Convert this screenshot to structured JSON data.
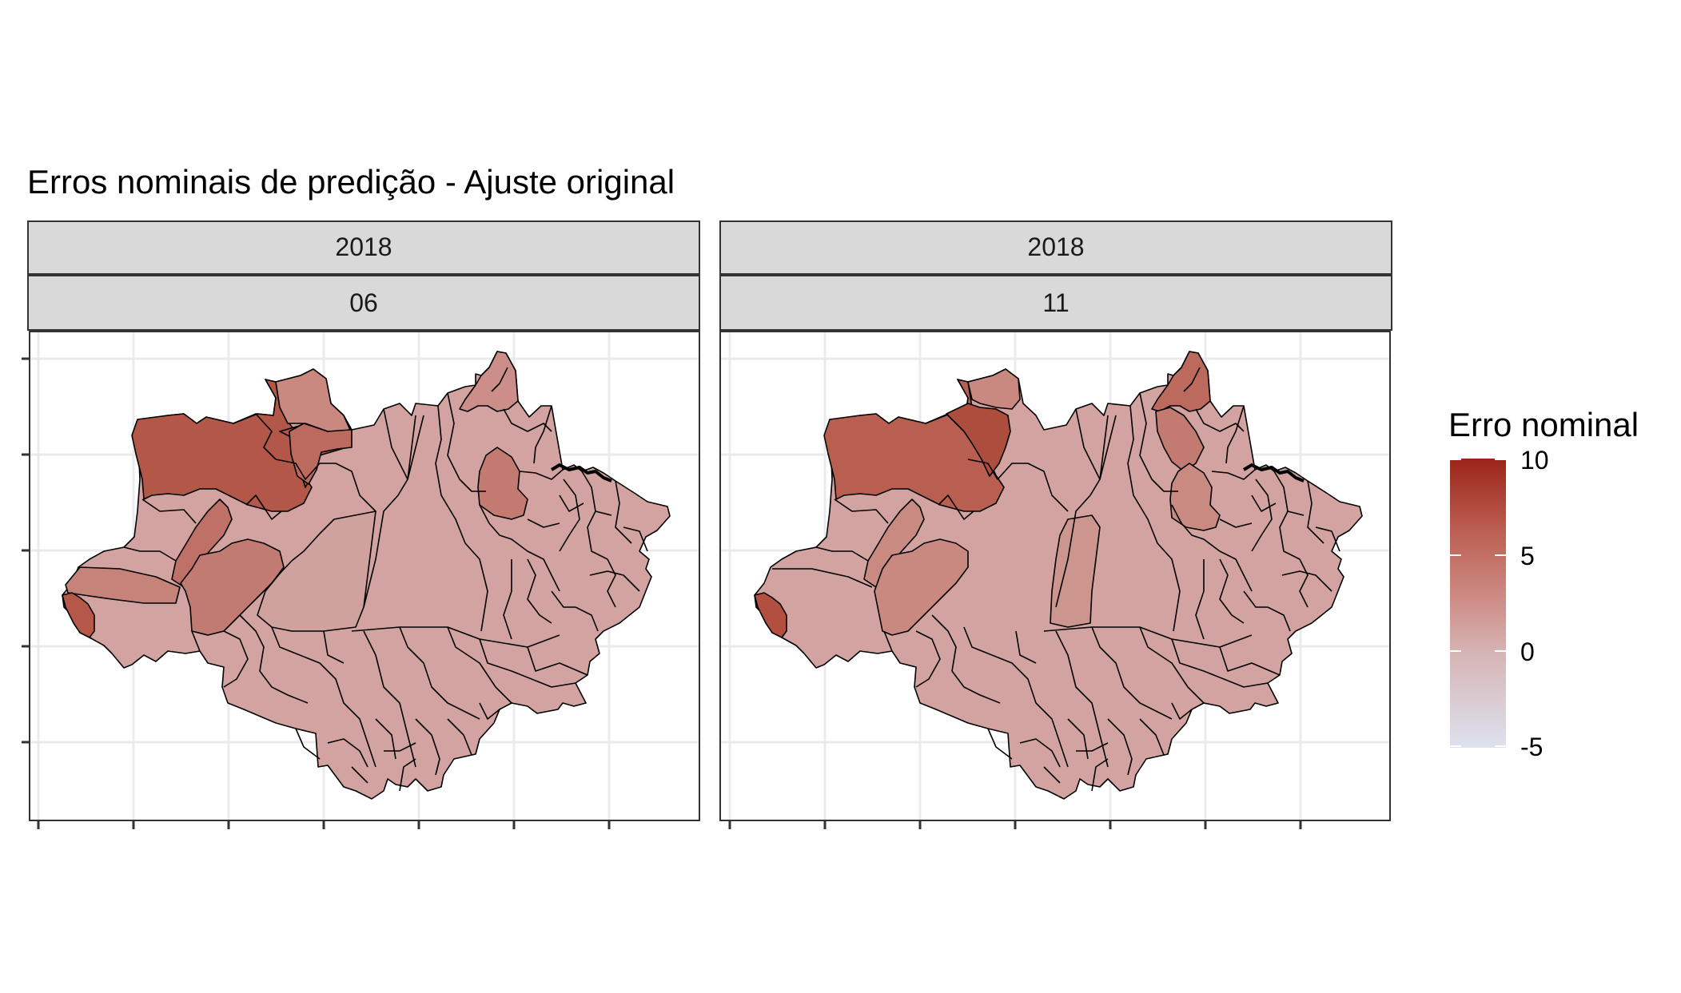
{
  "title": "Erros nominais de predição - Ajuste original",
  "legend": {
    "title": "Erro nominal",
    "ticks": [
      "10",
      "5",
      "0",
      "-5"
    ],
    "colors": {
      "low": "#dde2ee",
      "mid": "#d4a09c",
      "high": "#9b2418"
    }
  },
  "panels": [
    {
      "strip_top": "2018",
      "strip_bottom": "06"
    },
    {
      "strip_top": "2018",
      "strip_bottom": "11"
    }
  ],
  "colors": {
    "base_region": "#d2a3a0",
    "strip_fill": "#d9d9d9",
    "grid": "#ebebeb",
    "border": "#333333"
  }
}
